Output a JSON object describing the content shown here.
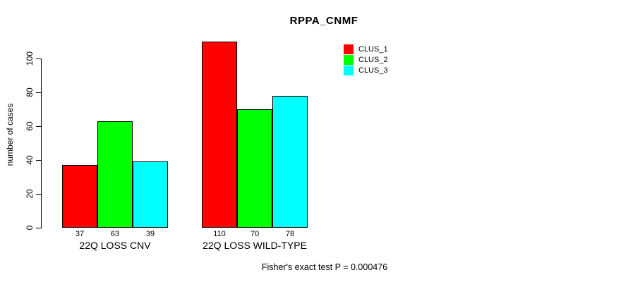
{
  "title": "RPPA_CNMF",
  "caption": "Fisher's exact test P = 0.000476",
  "colors": {
    "clus_1": "#ff0000",
    "clus_2": "#00ff00",
    "clus_3": "#00ffff",
    "axis": "#000000",
    "background": "#ffffff"
  },
  "legend": {
    "position": "top-right",
    "entries": [
      {
        "label": "CLUS_1",
        "color": "#ff0000"
      },
      {
        "label": "CLUS_2",
        "color": "#00ff00"
      },
      {
        "label": "CLUS_3",
        "color": "#00ffff"
      }
    ]
  },
  "chart_data": {
    "type": "bar",
    "title": "RPPA_CNMF",
    "xlabel": "",
    "ylabel": "number of cases",
    "categories": [
      "22Q LOSS CNV",
      "22Q LOSS WILD-TYPE"
    ],
    "series": [
      {
        "name": "CLUS_1",
        "color": "#ff0000",
        "values": [
          37,
          110
        ]
      },
      {
        "name": "CLUS_2",
        "color": "#00ff00",
        "values": [
          63,
          70
        ]
      },
      {
        "name": "CLUS_3",
        "color": "#00ffff",
        "values": [
          39,
          78
        ]
      }
    ],
    "bar_value_labels": [
      [
        "37",
        "63",
        "39"
      ],
      [
        "110",
        "70",
        "78"
      ]
    ],
    "yticks": [
      0,
      20,
      40,
      60,
      80,
      100
    ],
    "ylim": [
      0,
      110
    ],
    "grid": false,
    "legend_position": "top-right",
    "annotation": "Fisher's exact test P = 0.000476"
  }
}
